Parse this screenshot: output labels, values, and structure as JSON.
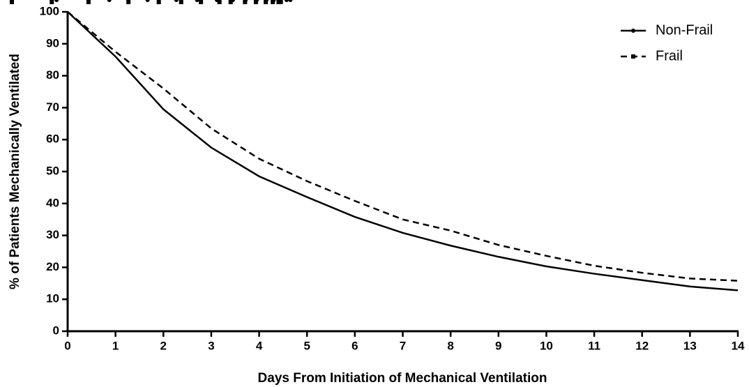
{
  "chart_data": {
    "type": "line",
    "x_label": "Days From Initiation of Mechanical Ventilation",
    "y_label": "% of Patients Mechanically Ventilated",
    "x": [
      0,
      1,
      2,
      3,
      4,
      5,
      6,
      7,
      8,
      9,
      10,
      11,
      12,
      13,
      14
    ],
    "series": [
      {
        "name": "Non-Frail",
        "color": "#000000",
        "linestyle": "solid",
        "marker": "circle",
        "values": [
          100,
          86,
          69.5,
          57.5,
          48.5,
          42,
          35.8,
          30.8,
          26.8,
          23.3,
          20.3,
          18,
          16,
          14,
          12.8
        ]
      },
      {
        "name": "Frail",
        "color": "#000000",
        "linestyle": "dashed",
        "marker": "square",
        "values": [
          100,
          87.5,
          76,
          63.5,
          54,
          47,
          40.8,
          35,
          31.5,
          27,
          23.6,
          20.5,
          18.3,
          16.5,
          15.8
        ]
      }
    ],
    "xlim": [
      0,
      14
    ],
    "xticks": [
      0,
      1,
      2,
      3,
      4,
      5,
      6,
      7,
      8,
      9,
      10,
      11,
      12,
      13,
      14
    ],
    "ylim": [
      0,
      100
    ],
    "yticks": [
      0,
      10,
      20,
      30,
      40,
      50,
      60,
      70,
      80,
      90,
      100
    ],
    "legend": "upper right",
    "grid": false
  }
}
